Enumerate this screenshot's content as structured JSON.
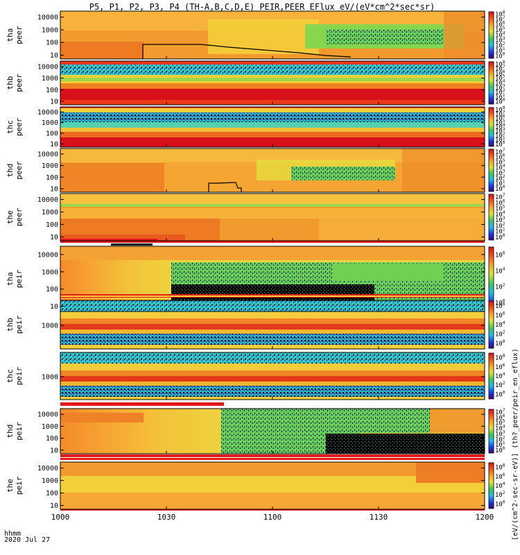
{
  "title": "P5, P1, P2, P3, P4 (TH-A,B,C,D,E) PEIR,PEER EFlux eV/(eV*cm^2*sec*sr)",
  "footer": {
    "time_label": "hhmm",
    "date_label": "2020 Jul 27"
  },
  "colorbar_unit_label": "[eV/(cm^2-sec-sr-eV)] (th?_peer/peir_en_eflux)",
  "chart_data": [
    {
      "type": "heatmap",
      "ylabel_top": "tha",
      "ylabel_bottom": "peer",
      "yticks": [
        "10000",
        "1000",
        "100",
        "10"
      ],
      "ylim_log": [
        5,
        30000
      ],
      "cbar_ticks": [
        "10^8",
        "10^7",
        "10^6",
        "10^5",
        "10^4",
        "10^3",
        "10^2",
        "10^1",
        "10^0"
      ],
      "overlay_trace": [
        [
          1000,
          null
        ],
        [
          1021,
          null
        ],
        [
          1021,
          2
        ],
        [
          1022,
          90
        ],
        [
          1035,
          90
        ],
        [
          1045,
          70
        ],
        [
          1060,
          40
        ],
        [
          1080,
          25
        ],
        [
          1100,
          15
        ],
        [
          1115,
          8
        ],
        [
          1122,
          7
        ],
        [
          1122,
          null
        ]
      ]
    },
    {
      "type": "heatmap",
      "ylabel_top": "thb",
      "ylabel_bottom": "peer",
      "yticks": [
        "10000",
        "1000",
        "100",
        "10"
      ],
      "ylim_log": [
        5,
        30000
      ],
      "cbar_ticks": [
        "10^8",
        "10^7",
        "10^6",
        "10^5",
        "10^4",
        "10^3",
        "10^2",
        "10^1",
        "10^0"
      ]
    },
    {
      "type": "heatmap",
      "ylabel_top": "thc",
      "ylabel_bottom": "peer",
      "yticks": [
        "10000",
        "1000",
        "100",
        "10"
      ],
      "ylim_log": [
        5,
        30000
      ],
      "cbar_ticks": [
        "10^8",
        "10^7",
        "10^6",
        "10^5",
        "10^4",
        "10^3",
        "10^2",
        "10^1",
        "10^0"
      ]
    },
    {
      "type": "heatmap",
      "ylabel_top": "thd",
      "ylabel_bottom": "peer",
      "yticks": [
        "10000",
        "1000",
        "100",
        "10"
      ],
      "ylim_log": [
        5,
        30000
      ],
      "cbar_ticks": [
        "10^7",
        "10^6",
        "10^5",
        "10^4",
        "10^3",
        "10^2",
        "10^1",
        "10^0"
      ],
      "overlay_trace": [
        [
          1038,
          null
        ],
        [
          1038,
          8
        ],
        [
          1039,
          45
        ],
        [
          1047,
          45
        ],
        [
          1048,
          20
        ],
        [
          1050,
          8
        ],
        [
          1050,
          null
        ]
      ]
    },
    {
      "type": "heatmap",
      "ylabel_top": "the",
      "ylabel_bottom": "peer",
      "yticks": [
        "10000",
        "1000",
        "100",
        "10"
      ],
      "ylim_log": [
        5,
        30000
      ],
      "cbar_ticks": [
        "10^7",
        "10^6",
        "10^5",
        "10^4",
        "10^3",
        "10^2",
        "10^1",
        "10^0"
      ]
    },
    {
      "type": "heatmap",
      "ylabel_top": "tha",
      "ylabel_bottom": "peir",
      "yticks": [
        "10000",
        "1000",
        "100",
        "10"
      ],
      "ylim_log": [
        5,
        30000
      ],
      "cbar_ticks": [
        "10^6",
        "10^4",
        "10^2",
        "10^0"
      ]
    },
    {
      "type": "heatmap",
      "ylabel_top": "thb",
      "ylabel_bottom": "peir",
      "yticks": [
        "1000"
      ],
      "ylim_log": [
        40,
        30000
      ],
      "cbar_ticks": [
        "10^8",
        "10^6",
        "10^4",
        "10^2",
        "10^0"
      ]
    },
    {
      "type": "heatmap",
      "ylabel_top": "thc",
      "ylabel_bottom": "peir",
      "yticks": [
        "1000"
      ],
      "ylim_log": [
        40,
        30000
      ],
      "cbar_ticks": [
        "10^8",
        "10^6",
        "10^4",
        "10^2",
        "10^0"
      ]
    },
    {
      "type": "heatmap",
      "ylabel_top": "thd",
      "ylabel_bottom": "peir",
      "yticks": [
        "10000",
        "1000",
        "100",
        "10"
      ],
      "ylim_log": [
        5,
        30000
      ],
      "cbar_ticks": [
        "10^7",
        "10^6",
        "10^5",
        "10^4",
        "10^3",
        "10^2",
        "10^1",
        "10^0"
      ]
    },
    {
      "type": "heatmap",
      "ylabel_top": "the",
      "ylabel_bottom": "peir",
      "yticks": [
        "10000",
        "1000",
        "100",
        "10"
      ],
      "ylim_log": [
        5,
        30000
      ],
      "cbar_ticks": [
        "10^8",
        "10^6",
        "10^4",
        "10^2",
        "10^0"
      ]
    }
  ],
  "xaxis": {
    "ticks": [
      "1000",
      "1030",
      "1100",
      "1130",
      "1200"
    ],
    "xlim_minutes": [
      0,
      120
    ],
    "tick_minutes": [
      0,
      30,
      60,
      90,
      120
    ]
  },
  "colors": {
    "red": "#e31a1c",
    "orange": "#f57f20",
    "yellow": "#f2d43a",
    "green": "#3fc460",
    "cyan": "#35d2d2",
    "blue": "#1f4de0",
    "black": "#000000"
  }
}
